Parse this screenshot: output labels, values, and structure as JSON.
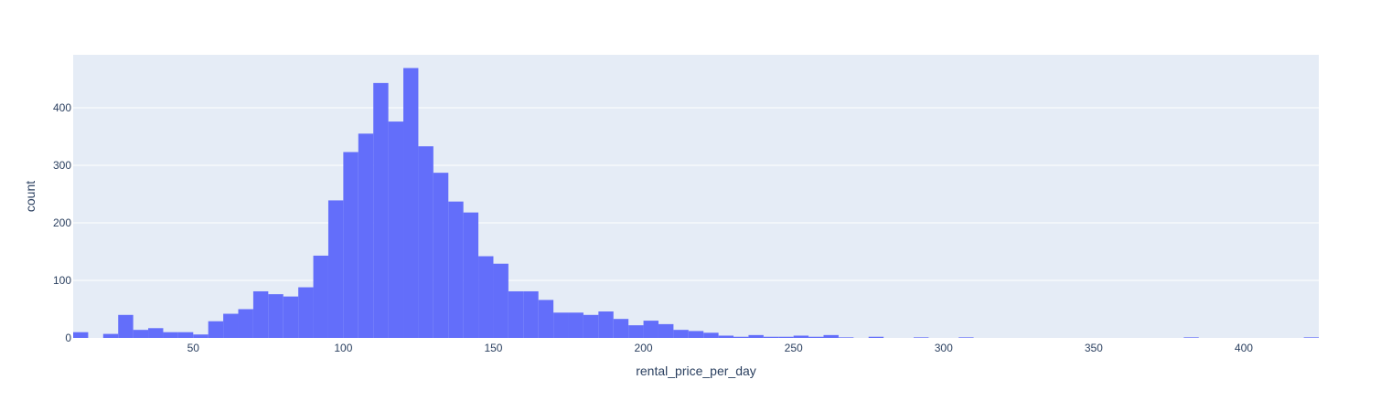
{
  "chart_data": {
    "type": "bar",
    "subtype": "histogram",
    "title": "",
    "xlabel": "rental_price_per_day",
    "ylabel": "count",
    "bin_width": 5,
    "bins_start": [
      10,
      15,
      20,
      25,
      30,
      35,
      40,
      45,
      50,
      55,
      60,
      65,
      70,
      75,
      80,
      85,
      90,
      95,
      100,
      105,
      110,
      115,
      120,
      125,
      130,
      135,
      140,
      145,
      150,
      155,
      160,
      165,
      170,
      175,
      180,
      185,
      190,
      195,
      200,
      205,
      210,
      215,
      220,
      225,
      230,
      235,
      240,
      245,
      250,
      255,
      260,
      265,
      270,
      275,
      280,
      285,
      290,
      295,
      300,
      305,
      310,
      315,
      320,
      325,
      330,
      335,
      340,
      345,
      350,
      355,
      360,
      365,
      370,
      375,
      380,
      385,
      390,
      395,
      400,
      405,
      410,
      415,
      420
    ],
    "values": [
      10,
      0,
      7,
      40,
      14,
      17,
      10,
      10,
      6,
      29,
      42,
      50,
      81,
      76,
      72,
      88,
      143,
      239,
      323,
      355,
      443,
      376,
      469,
      333,
      287,
      237,
      218,
      142,
      129,
      81,
      81,
      66,
      44,
      44,
      40,
      46,
      33,
      22,
      30,
      24,
      14,
      12,
      9,
      4,
      2,
      5,
      2,
      2,
      4,
      2,
      5,
      1,
      0,
      2,
      0,
      0,
      1,
      0,
      0,
      1,
      0,
      0,
      0,
      0,
      0,
      0,
      0,
      0,
      0,
      0,
      0,
      0,
      0,
      0,
      1,
      0,
      0,
      0,
      0,
      0,
      0,
      0,
      1
    ],
    "xlim": [
      10,
      425
    ],
    "ylim": [
      0,
      492
    ],
    "xticks": [
      50,
      100,
      150,
      200,
      250,
      300,
      350,
      400
    ],
    "yticks": [
      0,
      100,
      200,
      300,
      400
    ],
    "grid": true,
    "colors": {
      "bar": "#636efa",
      "plot_bg": "#e5ecf6",
      "grid": "#ffffff",
      "text": "#2a3f5f"
    }
  }
}
